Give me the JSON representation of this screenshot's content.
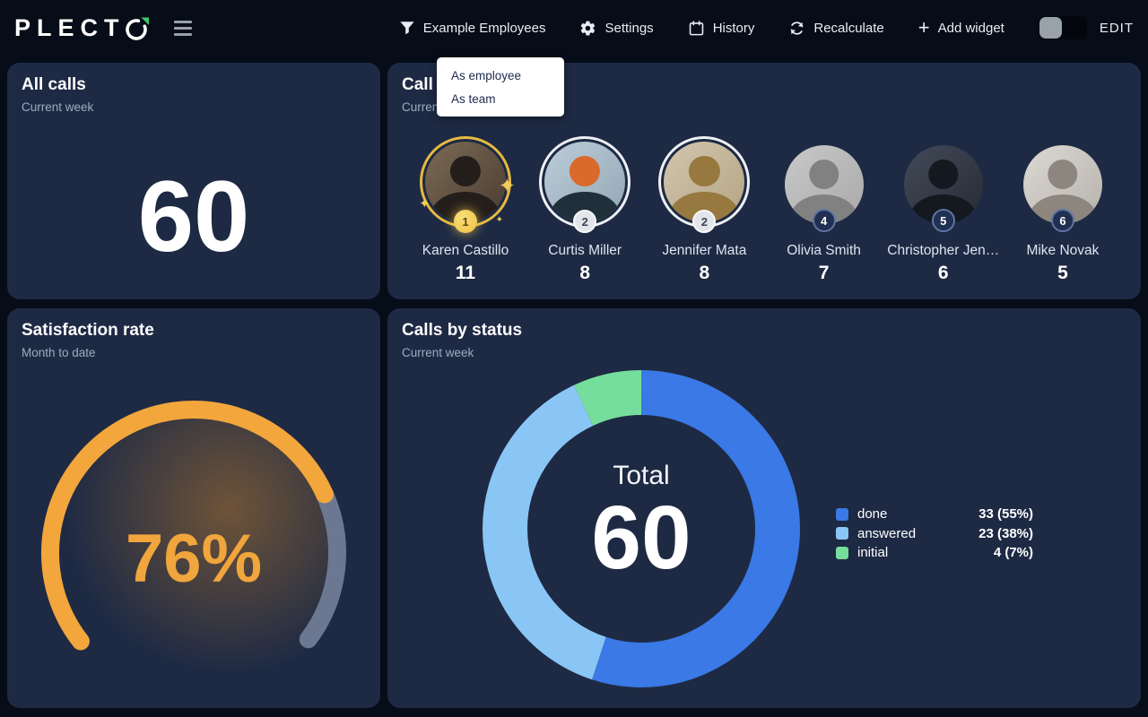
{
  "app": {
    "logo_text": "PLECT",
    "edit_label": "EDIT",
    "accent_green": "#3ec66e"
  },
  "nav": {
    "filter": {
      "label": "Example Employees"
    },
    "settings": {
      "label": "Settings"
    },
    "history": {
      "label": "History"
    },
    "recalculate": {
      "label": "Recalculate"
    },
    "add_widget": {
      "label": "Add widget"
    }
  },
  "filter_menu": {
    "items": [
      {
        "label": "As employee"
      },
      {
        "label": "As team"
      }
    ]
  },
  "cards": {
    "all_calls": {
      "title": "All calls",
      "subtitle": "Current week",
      "value": "60"
    },
    "call_count": {
      "title": "Call count",
      "subtitle": "Current week",
      "employees": [
        {
          "name": "Karen Castillo",
          "value": "11",
          "rank": "1"
        },
        {
          "name": "Curtis Miller",
          "value": "8",
          "rank": "2"
        },
        {
          "name": "Jennifer Mata",
          "value": "8",
          "rank": "2"
        },
        {
          "name": "Olivia Smith",
          "value": "7",
          "rank": "4"
        },
        {
          "name": "Christopher Jen…",
          "value": "6",
          "rank": "5"
        },
        {
          "name": "Mike Novak",
          "value": "5",
          "rank": "6"
        }
      ]
    },
    "satisfaction": {
      "title": "Satisfaction rate",
      "subtitle": "Month to date",
      "value": "76%"
    },
    "calls_by_status": {
      "title": "Calls by status",
      "subtitle": "Current week",
      "center_label": "Total",
      "center_value": "60",
      "legend": [
        {
          "label": "done",
          "value_text": "33 (55%)"
        },
        {
          "label": "answered",
          "value_text": "23 (38%)"
        },
        {
          "label": "initial",
          "value_text": "4 (7%)"
        }
      ]
    }
  },
  "chart_data": [
    {
      "id": "all_calls_counter",
      "type": "counter",
      "title": "All calls",
      "period": "Current week",
      "value": 60
    },
    {
      "id": "call_count_leaderboard",
      "type": "bar",
      "title": "Call count",
      "period": "Current week",
      "categories": [
        "Karen Castillo",
        "Curtis Miller",
        "Jennifer Mata",
        "Olivia Smith",
        "Christopher Jen…",
        "Mike Novak"
      ],
      "values": [
        11,
        8,
        8,
        7,
        6,
        5
      ],
      "ranks": [
        1,
        2,
        2,
        4,
        5,
        6
      ]
    },
    {
      "id": "satisfaction_gauge",
      "type": "gauge",
      "title": "Satisfaction rate",
      "period": "Month to date",
      "percent": 76,
      "label": "76%",
      "fill_color": "#f2a63c",
      "track_color": "#6c7892",
      "start_angle_deg": 218,
      "sweep_deg": 255
    },
    {
      "id": "calls_by_status_donut",
      "type": "pie",
      "title": "Calls by status",
      "period": "Current week",
      "center_label": "Total",
      "center_value": 60,
      "legend_position": "right",
      "slices": [
        {
          "label": "done",
          "value": 33,
          "pct": 55,
          "color": "#3a79e6"
        },
        {
          "label": "answered",
          "value": 23,
          "pct": 38,
          "color": "#8ac6f5"
        },
        {
          "label": "initial",
          "value": 4,
          "pct": 7,
          "color": "#76de9c"
        }
      ]
    }
  ]
}
